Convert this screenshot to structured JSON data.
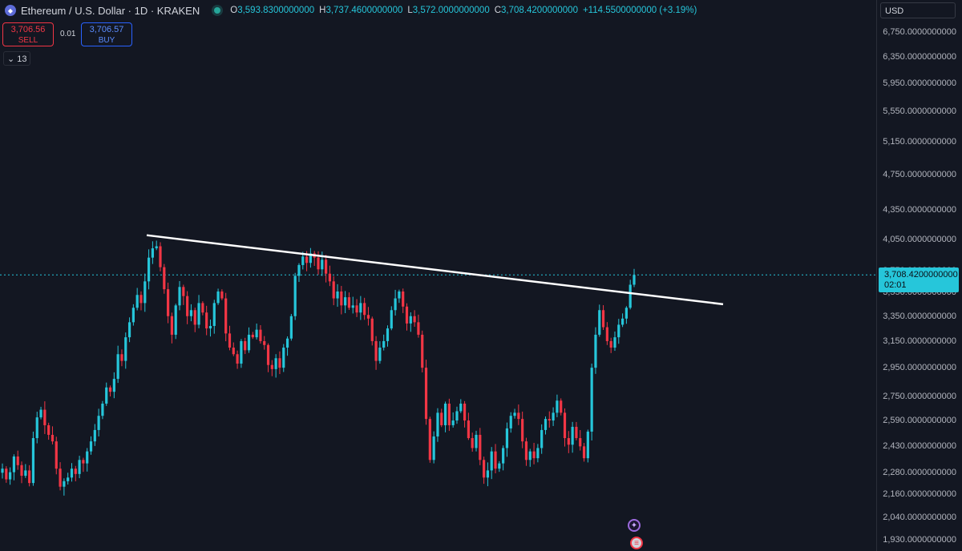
{
  "header": {
    "title": "Ethereum / U.S. Dollar · 1D · KRAKEN",
    "o_label": "O",
    "o_value": "3,593.8300000000",
    "h_label": "H",
    "h_value": "3,737.4600000000",
    "l_label": "L",
    "l_value": "3,572.0000000000",
    "c_label": "C",
    "c_value": "3,708.4200000000",
    "change": "+114.5500000000 (+3.19%)"
  },
  "trade": {
    "sell_price": "3,706.56",
    "sell_label": "SELL",
    "spread": "0.01",
    "buy_price": "3,706.57",
    "buy_label": "BUY"
  },
  "indicators": {
    "toggle_icon": "chevron-down-icon",
    "count": "13"
  },
  "currency": "USD",
  "last_price": {
    "price": "3,708.4200000000",
    "countdown": "02:01"
  },
  "colors": {
    "up": "#26c6da",
    "down": "#f23645",
    "background": "#131722",
    "trendline": "#ffffff"
  },
  "icons": [
    "ethereum-icon",
    "market-open-icon",
    "event-icon",
    "us-flag-icon"
  ],
  "chart_data": {
    "type": "candlestick",
    "axis_labels": [
      "6,750.0000000000",
      "6,350.0000000000",
      "5,950.0000000000",
      "5,550.0000000000",
      "5,150.0000000000",
      "4,750.0000000000",
      "4,350.0000000000",
      "4,050.0000000000",
      "3,750.0000000000",
      "3,550.0000000000",
      "3,350.0000000000",
      "3,150.0000000000",
      "2,950.0000000000",
      "2,750.0000000000",
      "2,590.0000000000",
      "2,430.0000000000",
      "2,280.0000000000",
      "2,160.0000000000",
      "2,040.0000000000",
      "1,930.0000000000"
    ],
    "axis_values": [
      6750,
      6350,
      5950,
      5550,
      5150,
      4750,
      4350,
      4050,
      3750,
      3550,
      3350,
      3150,
      2950,
      2750,
      2590,
      2430,
      2280,
      2160,
      2040,
      1930
    ],
    "scale": "log",
    "ylim": [
      1900,
      7050
    ],
    "last_close": 3708.42,
    "trendline": {
      "start_price": 4090,
      "end_price": 3450
    },
    "closes": [
      2300,
      2240,
      2280,
      2370,
      2320,
      2260,
      2290,
      2220,
      2480,
      2610,
      2660,
      2560,
      2500,
      2460,
      2300,
      2200,
      2230,
      2250,
      2300,
      2270,
      2350,
      2330,
      2400,
      2460,
      2530,
      2620,
      2700,
      2810,
      2780,
      2870,
      3050,
      3000,
      3180,
      3300,
      3420,
      3530,
      3460,
      3650,
      3870,
      3960,
      3980,
      3780,
      3580,
      3350,
      3200,
      3440,
      3600,
      3520,
      3350,
      3400,
      3280,
      3460,
      3380,
      3250,
      3270,
      3460,
      3560,
      3500,
      3210,
      3100,
      3050,
      2980,
      3150,
      3080,
      3200,
      3180,
      3240,
      3150,
      3120,
      2970,
      2940,
      3020,
      2950,
      3100,
      3170,
      3350,
      3700,
      3800,
      3880,
      3820,
      3910,
      3870,
      3760,
      3850,
      3720,
      3650,
      3500,
      3560,
      3440,
      3510,
      3420,
      3440,
      3380,
      3460,
      3360,
      3330,
      3150,
      3000,
      3100,
      3150,
      3250,
      3400,
      3500,
      3560,
      3430,
      3290,
      3350,
      3300,
      3200,
      2950,
      2600,
      2350,
      2490,
      2640,
      2560,
      2700,
      2560,
      2590,
      2650,
      2700,
      2590,
      2480,
      2420,
      2500,
      2350,
      2250,
      2290,
      2400,
      2300,
      2330,
      2420,
      2540,
      2620,
      2640,
      2600,
      2460,
      2350,
      2400,
      2360,
      2420,
      2530,
      2600,
      2590,
      2640,
      2720,
      2640,
      2480,
      2440,
      2550,
      2480,
      2430,
      2360,
      2520,
      2950,
      3200,
      3400,
      3260,
      3150,
      3100,
      3180,
      3280,
      3330,
      3420,
      3620,
      3708
    ]
  }
}
